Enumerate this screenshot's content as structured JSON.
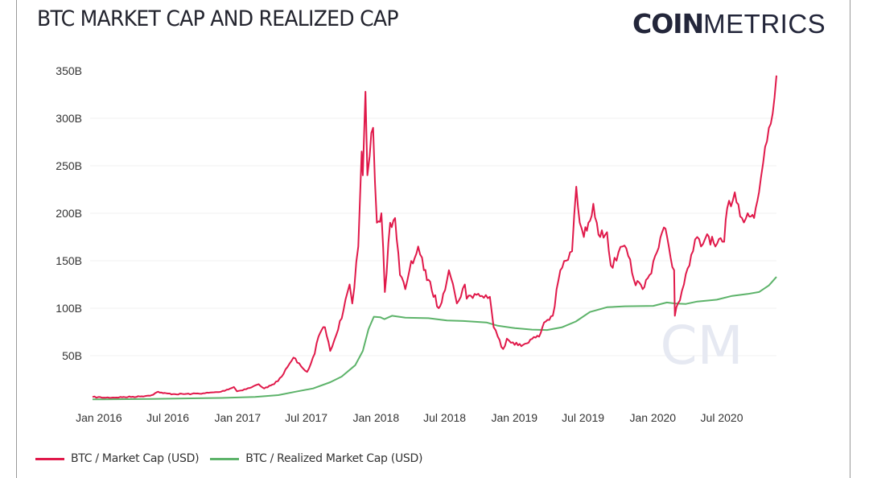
{
  "header": {
    "title": "BTC MARKET CAP AND REALIZED CAP",
    "logo_bold": "COIN",
    "logo_thin": "METRICS"
  },
  "watermark": "CM",
  "chart_data": {
    "type": "line",
    "title": "BTC MARKET CAP AND REALIZED CAP",
    "xlabel": "",
    "ylabel": "",
    "ylim": [
      0,
      350
    ],
    "y_unit": "B",
    "y_ticks": [
      "50B",
      "100B",
      "150B",
      "200B",
      "250B",
      "300B",
      "350B"
    ],
    "y_tick_values": [
      50,
      100,
      150,
      200,
      250,
      300,
      350
    ],
    "x_ticks": [
      "Jan 2016",
      "Jul 2016",
      "Jan 2017",
      "Jul 2017",
      "Jan 2018",
      "Jul 2018",
      "Jan 2019",
      "Jul 2019",
      "Jan 2020",
      "Jul 2020"
    ],
    "x_tick_dates": [
      "2016-01-01",
      "2016-07-01",
      "2017-01-01",
      "2017-07-01",
      "2018-01-01",
      "2018-07-01",
      "2019-01-01",
      "2019-07-01",
      "2020-01-01",
      "2020-07-01"
    ],
    "xlim": [
      "2015-12-28",
      "2020-12-05"
    ],
    "grid": true,
    "legend_position": "bottom-left",
    "series": [
      {
        "name": "BTC / Market Cap (USD)",
        "color": "#e0194a",
        "points": [
          [
            "2015-12-28",
            6.5
          ],
          [
            "2016-02-01",
            5.8
          ],
          [
            "2016-03-15",
            6.3
          ],
          [
            "2016-05-01",
            7.0
          ],
          [
            "2016-06-01",
            8.5
          ],
          [
            "2016-06-18",
            12.0
          ],
          [
            "2016-07-01",
            10.5
          ],
          [
            "2016-08-01",
            9.5
          ],
          [
            "2016-09-15",
            9.8
          ],
          [
            "2016-10-20",
            10.5
          ],
          [
            "2016-12-01",
            12.0
          ],
          [
            "2017-01-04",
            17.0
          ],
          [
            "2017-01-12",
            12.5
          ],
          [
            "2017-02-15",
            16.0
          ],
          [
            "2017-03-10",
            20.0
          ],
          [
            "2017-03-25",
            15.5
          ],
          [
            "2017-04-20",
            20.0
          ],
          [
            "2017-05-10",
            28.0
          ],
          [
            "2017-05-25",
            38.0
          ],
          [
            "2017-06-10",
            48.0
          ],
          [
            "2017-06-25",
            42.0
          ],
          [
            "2017-07-16",
            33.0
          ],
          [
            "2017-08-05",
            52.0
          ],
          [
            "2017-08-15",
            70.0
          ],
          [
            "2017-09-01",
            80.0
          ],
          [
            "2017-09-15",
            55.0
          ],
          [
            "2017-10-01",
            72.0
          ],
          [
            "2017-10-20",
            98.0
          ],
          [
            "2017-11-05",
            125.0
          ],
          [
            "2017-11-12",
            105.0
          ],
          [
            "2017-11-28",
            165.0
          ],
          [
            "2017-12-07",
            265.0
          ],
          [
            "2017-12-10",
            240.0
          ],
          [
            "2017-12-17",
            328.0
          ],
          [
            "2017-12-22",
            240.0
          ],
          [
            "2017-12-28",
            260.0
          ],
          [
            "2018-01-06",
            290.0
          ],
          [
            "2018-01-16",
            190.0
          ],
          [
            "2018-01-28",
            200.0
          ],
          [
            "2018-02-06",
            117.0
          ],
          [
            "2018-02-20",
            190.0
          ],
          [
            "2018-03-05",
            195.0
          ],
          [
            "2018-03-18",
            135.0
          ],
          [
            "2018-04-01",
            120.0
          ],
          [
            "2018-04-12",
            140.0
          ],
          [
            "2018-05-05",
            165.0
          ],
          [
            "2018-05-20",
            140.0
          ],
          [
            "2018-06-01",
            130.0
          ],
          [
            "2018-06-28",
            100.0
          ],
          [
            "2018-07-10",
            115.0
          ],
          [
            "2018-07-25",
            140.0
          ],
          [
            "2018-08-10",
            115.0
          ],
          [
            "2018-08-15",
            105.0
          ],
          [
            "2018-09-05",
            125.0
          ],
          [
            "2018-09-10",
            110.0
          ],
          [
            "2018-10-01",
            115.0
          ],
          [
            "2018-10-20",
            113.0
          ],
          [
            "2018-11-10",
            112.0
          ],
          [
            "2018-11-20",
            80.0
          ],
          [
            "2018-12-01",
            70.0
          ],
          [
            "2018-12-15",
            57.0
          ],
          [
            "2018-12-25",
            68.0
          ],
          [
            "2019-01-10",
            64.0
          ],
          [
            "2019-02-01",
            60.0
          ],
          [
            "2019-02-25",
            67.0
          ],
          [
            "2019-03-20",
            70.0
          ],
          [
            "2019-04-02",
            85.0
          ],
          [
            "2019-04-25",
            92.0
          ],
          [
            "2019-05-15",
            140.0
          ],
          [
            "2019-05-30",
            150.0
          ],
          [
            "2019-06-15",
            160.0
          ],
          [
            "2019-06-26",
            228.0
          ],
          [
            "2019-07-05",
            190.0
          ],
          [
            "2019-07-16",
            175.0
          ],
          [
            "2019-07-28",
            190.0
          ],
          [
            "2019-08-10",
            210.0
          ],
          [
            "2019-08-28",
            175.0
          ],
          [
            "2019-09-15",
            180.0
          ],
          [
            "2019-09-25",
            145.0
          ],
          [
            "2019-10-10",
            150.0
          ],
          [
            "2019-10-26",
            165.0
          ],
          [
            "2019-11-10",
            155.0
          ],
          [
            "2019-11-25",
            130.0
          ],
          [
            "2019-12-18",
            120.0
          ],
          [
            "2020-01-05",
            135.0
          ],
          [
            "2020-01-20",
            155.0
          ],
          [
            "2020-02-12",
            185.0
          ],
          [
            "2020-02-25",
            165.0
          ],
          [
            "2020-03-10",
            140.0
          ],
          [
            "2020-03-12",
            92.0
          ],
          [
            "2020-03-20",
            105.0
          ],
          [
            "2020-04-05",
            125.0
          ],
          [
            "2020-04-29",
            160.0
          ],
          [
            "2020-05-10",
            175.0
          ],
          [
            "2020-05-20",
            165.0
          ],
          [
            "2020-06-05",
            178.0
          ],
          [
            "2020-06-27",
            165.0
          ],
          [
            "2020-07-20",
            170.0
          ],
          [
            "2020-07-28",
            205.0
          ],
          [
            "2020-08-17",
            222.0
          ],
          [
            "2020-09-05",
            195.0
          ],
          [
            "2020-09-20",
            200.0
          ],
          [
            "2020-10-07",
            195.0
          ],
          [
            "2020-10-20",
            222.0
          ],
          [
            "2020-11-05",
            270.0
          ],
          [
            "2020-11-15",
            290.0
          ],
          [
            "2020-11-25",
            305.0
          ],
          [
            "2020-12-05",
            345.0
          ]
        ]
      },
      {
        "name": "BTC / Realized Market Cap (USD)",
        "color": "#5db36a",
        "points": [
          [
            "2015-12-28",
            4.0
          ],
          [
            "2016-06-01",
            4.5
          ],
          [
            "2016-12-01",
            5.5
          ],
          [
            "2017-03-01",
            6.5
          ],
          [
            "2017-05-01",
            8.5
          ],
          [
            "2017-06-15",
            12.0
          ],
          [
            "2017-08-01",
            15.5
          ],
          [
            "2017-09-15",
            22.0
          ],
          [
            "2017-10-15",
            28.0
          ],
          [
            "2017-11-20",
            40.0
          ],
          [
            "2017-12-10",
            55.0
          ],
          [
            "2017-12-25",
            78.0
          ],
          [
            "2018-01-08",
            91.0
          ],
          [
            "2018-01-25",
            90.5
          ],
          [
            "2018-02-05",
            88.5
          ],
          [
            "2018-02-25",
            92.0
          ],
          [
            "2018-04-01",
            90.0
          ],
          [
            "2018-06-01",
            89.5
          ],
          [
            "2018-07-20",
            87.0
          ],
          [
            "2018-09-01",
            86.5
          ],
          [
            "2018-11-01",
            85.0
          ],
          [
            "2018-12-01",
            81.5
          ],
          [
            "2019-01-15",
            79.0
          ],
          [
            "2019-03-01",
            77.5
          ],
          [
            "2019-04-10",
            77.0
          ],
          [
            "2019-05-20",
            80.0
          ],
          [
            "2019-06-25",
            86.0
          ],
          [
            "2019-08-01",
            96.0
          ],
          [
            "2019-09-15",
            101.0
          ],
          [
            "2019-11-01",
            102.0
          ],
          [
            "2020-01-15",
            102.5
          ],
          [
            "2020-02-20",
            106.0
          ],
          [
            "2020-03-12",
            105.0
          ],
          [
            "2020-04-10",
            104.5
          ],
          [
            "2020-05-10",
            107.0
          ],
          [
            "2020-07-01",
            109.0
          ],
          [
            "2020-08-10",
            113.0
          ],
          [
            "2020-09-20",
            115.0
          ],
          [
            "2020-10-20",
            117.0
          ],
          [
            "2020-11-15",
            124.0
          ],
          [
            "2020-12-05",
            133.0
          ]
        ]
      }
    ]
  },
  "legend": {
    "items": [
      {
        "label": "BTC / Market Cap (USD)",
        "color": "#e0194a"
      },
      {
        "label": "BTC / Realized Market Cap (USD)",
        "color": "#5db36a"
      }
    ]
  }
}
